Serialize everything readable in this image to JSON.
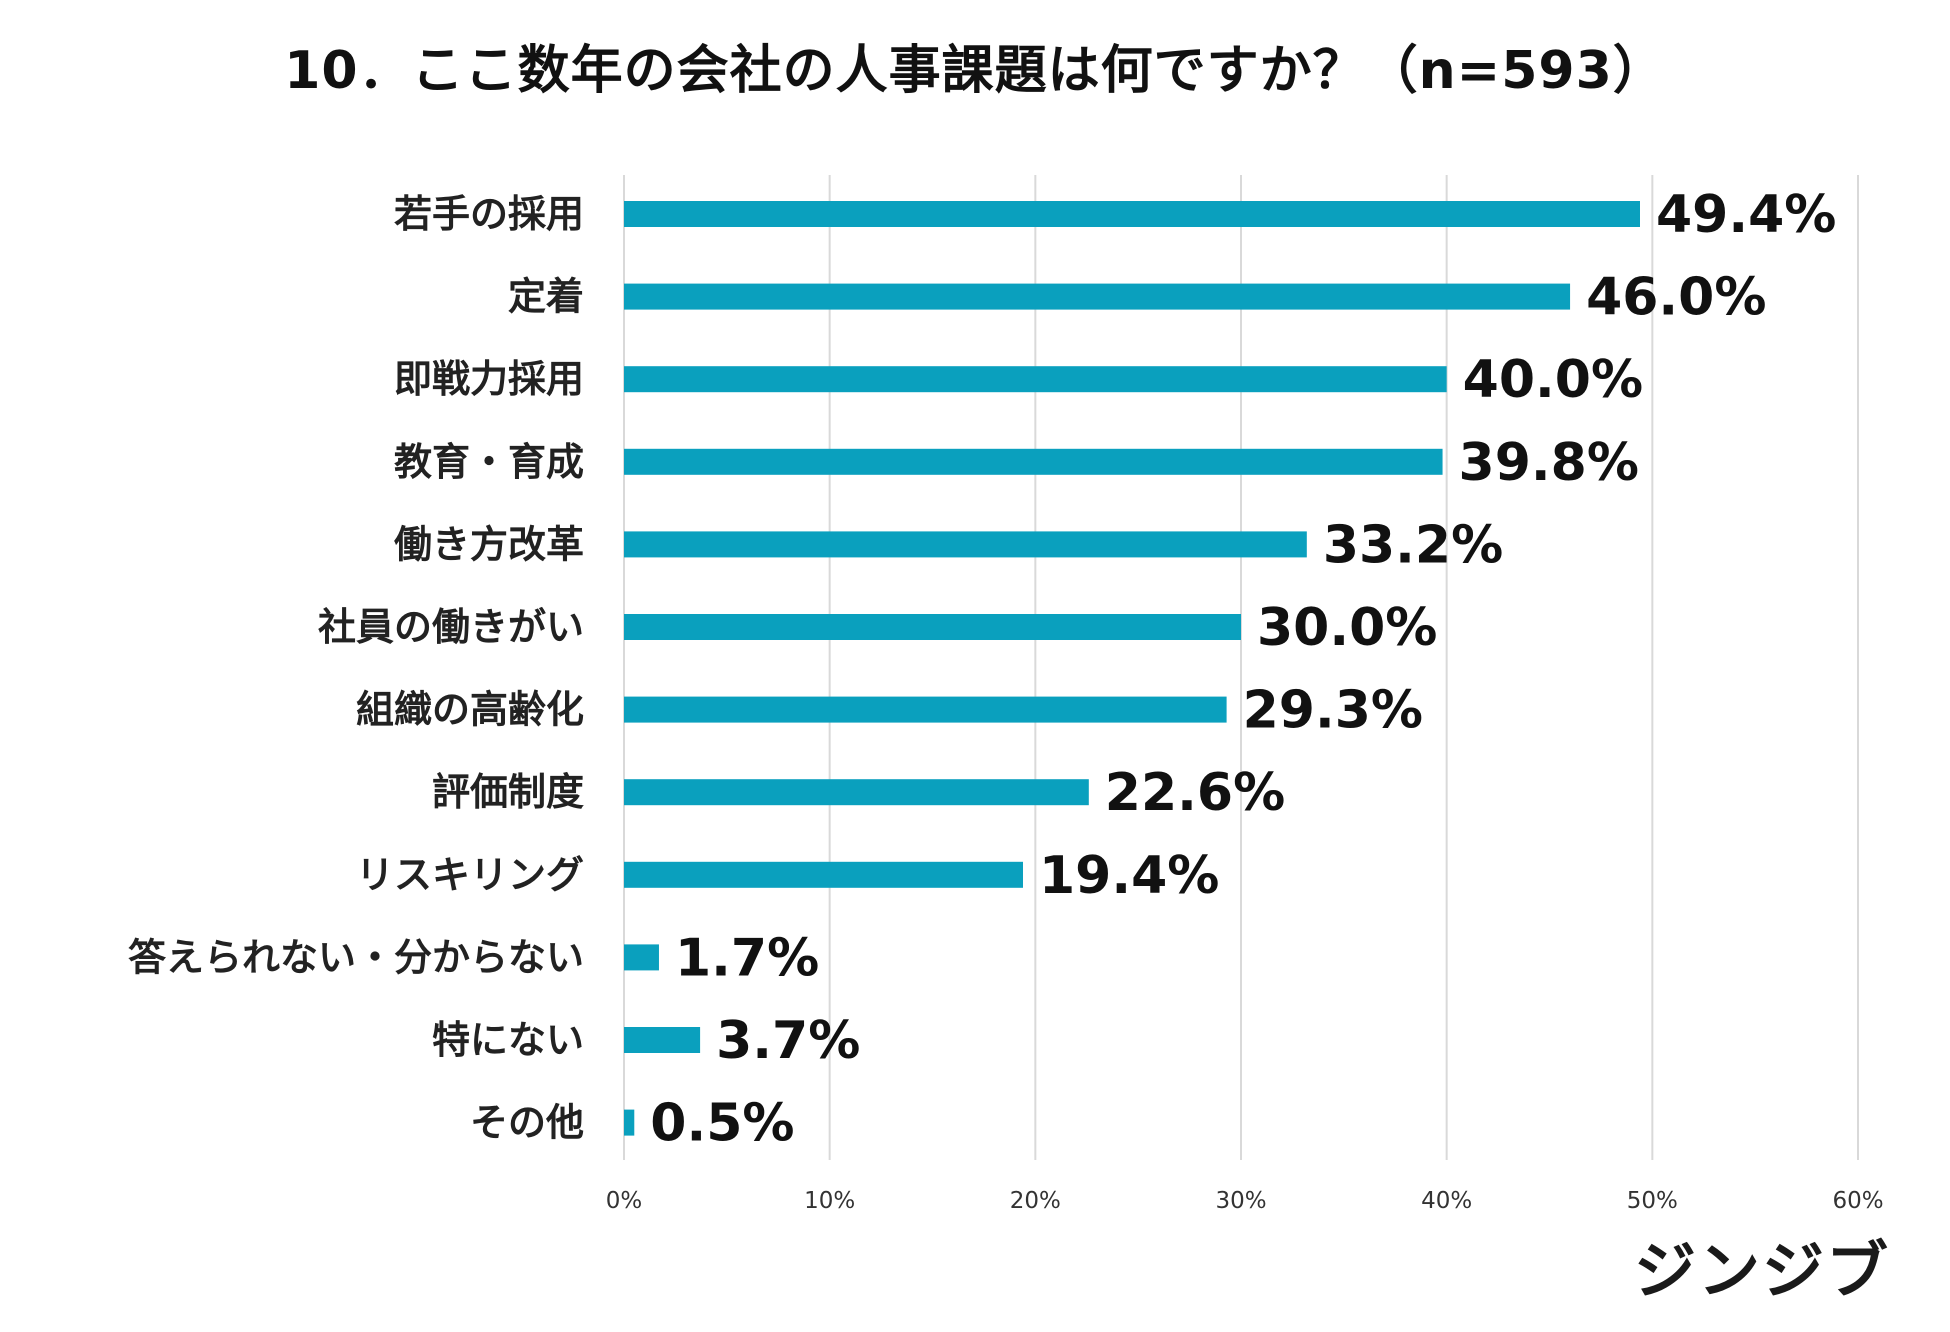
{
  "chart_data": {
    "type": "bar",
    "orientation": "horizontal",
    "title": "10．ここ数年の会社の人事課題は何ですか？（n=593）",
    "categories": [
      "若手の採用",
      "定着",
      "即戦力採用",
      "教育・育成",
      "働き方改革",
      "社員の働きがい",
      "組織の高齢化",
      "評価制度",
      "リスキリング",
      "答えられない・分からない",
      "特にない",
      "その他"
    ],
    "values": [
      49.4,
      46.0,
      40.0,
      39.8,
      33.2,
      30.0,
      29.3,
      22.6,
      19.4,
      1.7,
      3.7,
      0.5
    ],
    "value_labels": [
      "49.4%",
      "46.0%",
      "40.0%",
      "39.8%",
      "33.2%",
      "30.0%",
      "29.3%",
      "22.6%",
      "19.4%",
      "1.7%",
      "3.7%",
      "0.5%"
    ],
    "xlim": [
      0,
      60
    ],
    "x_ticks": [
      0,
      10,
      20,
      30,
      40,
      50,
      60
    ],
    "x_tick_labels": [
      "0%",
      "10%",
      "20%",
      "30%",
      "40%",
      "50%",
      "60%"
    ],
    "grid": true,
    "bar_color": "#0aa0be",
    "grid_color": "#d9d9d9",
    "xlabel": "",
    "ylabel": ""
  },
  "brand": {
    "name": "ジンジブ"
  }
}
